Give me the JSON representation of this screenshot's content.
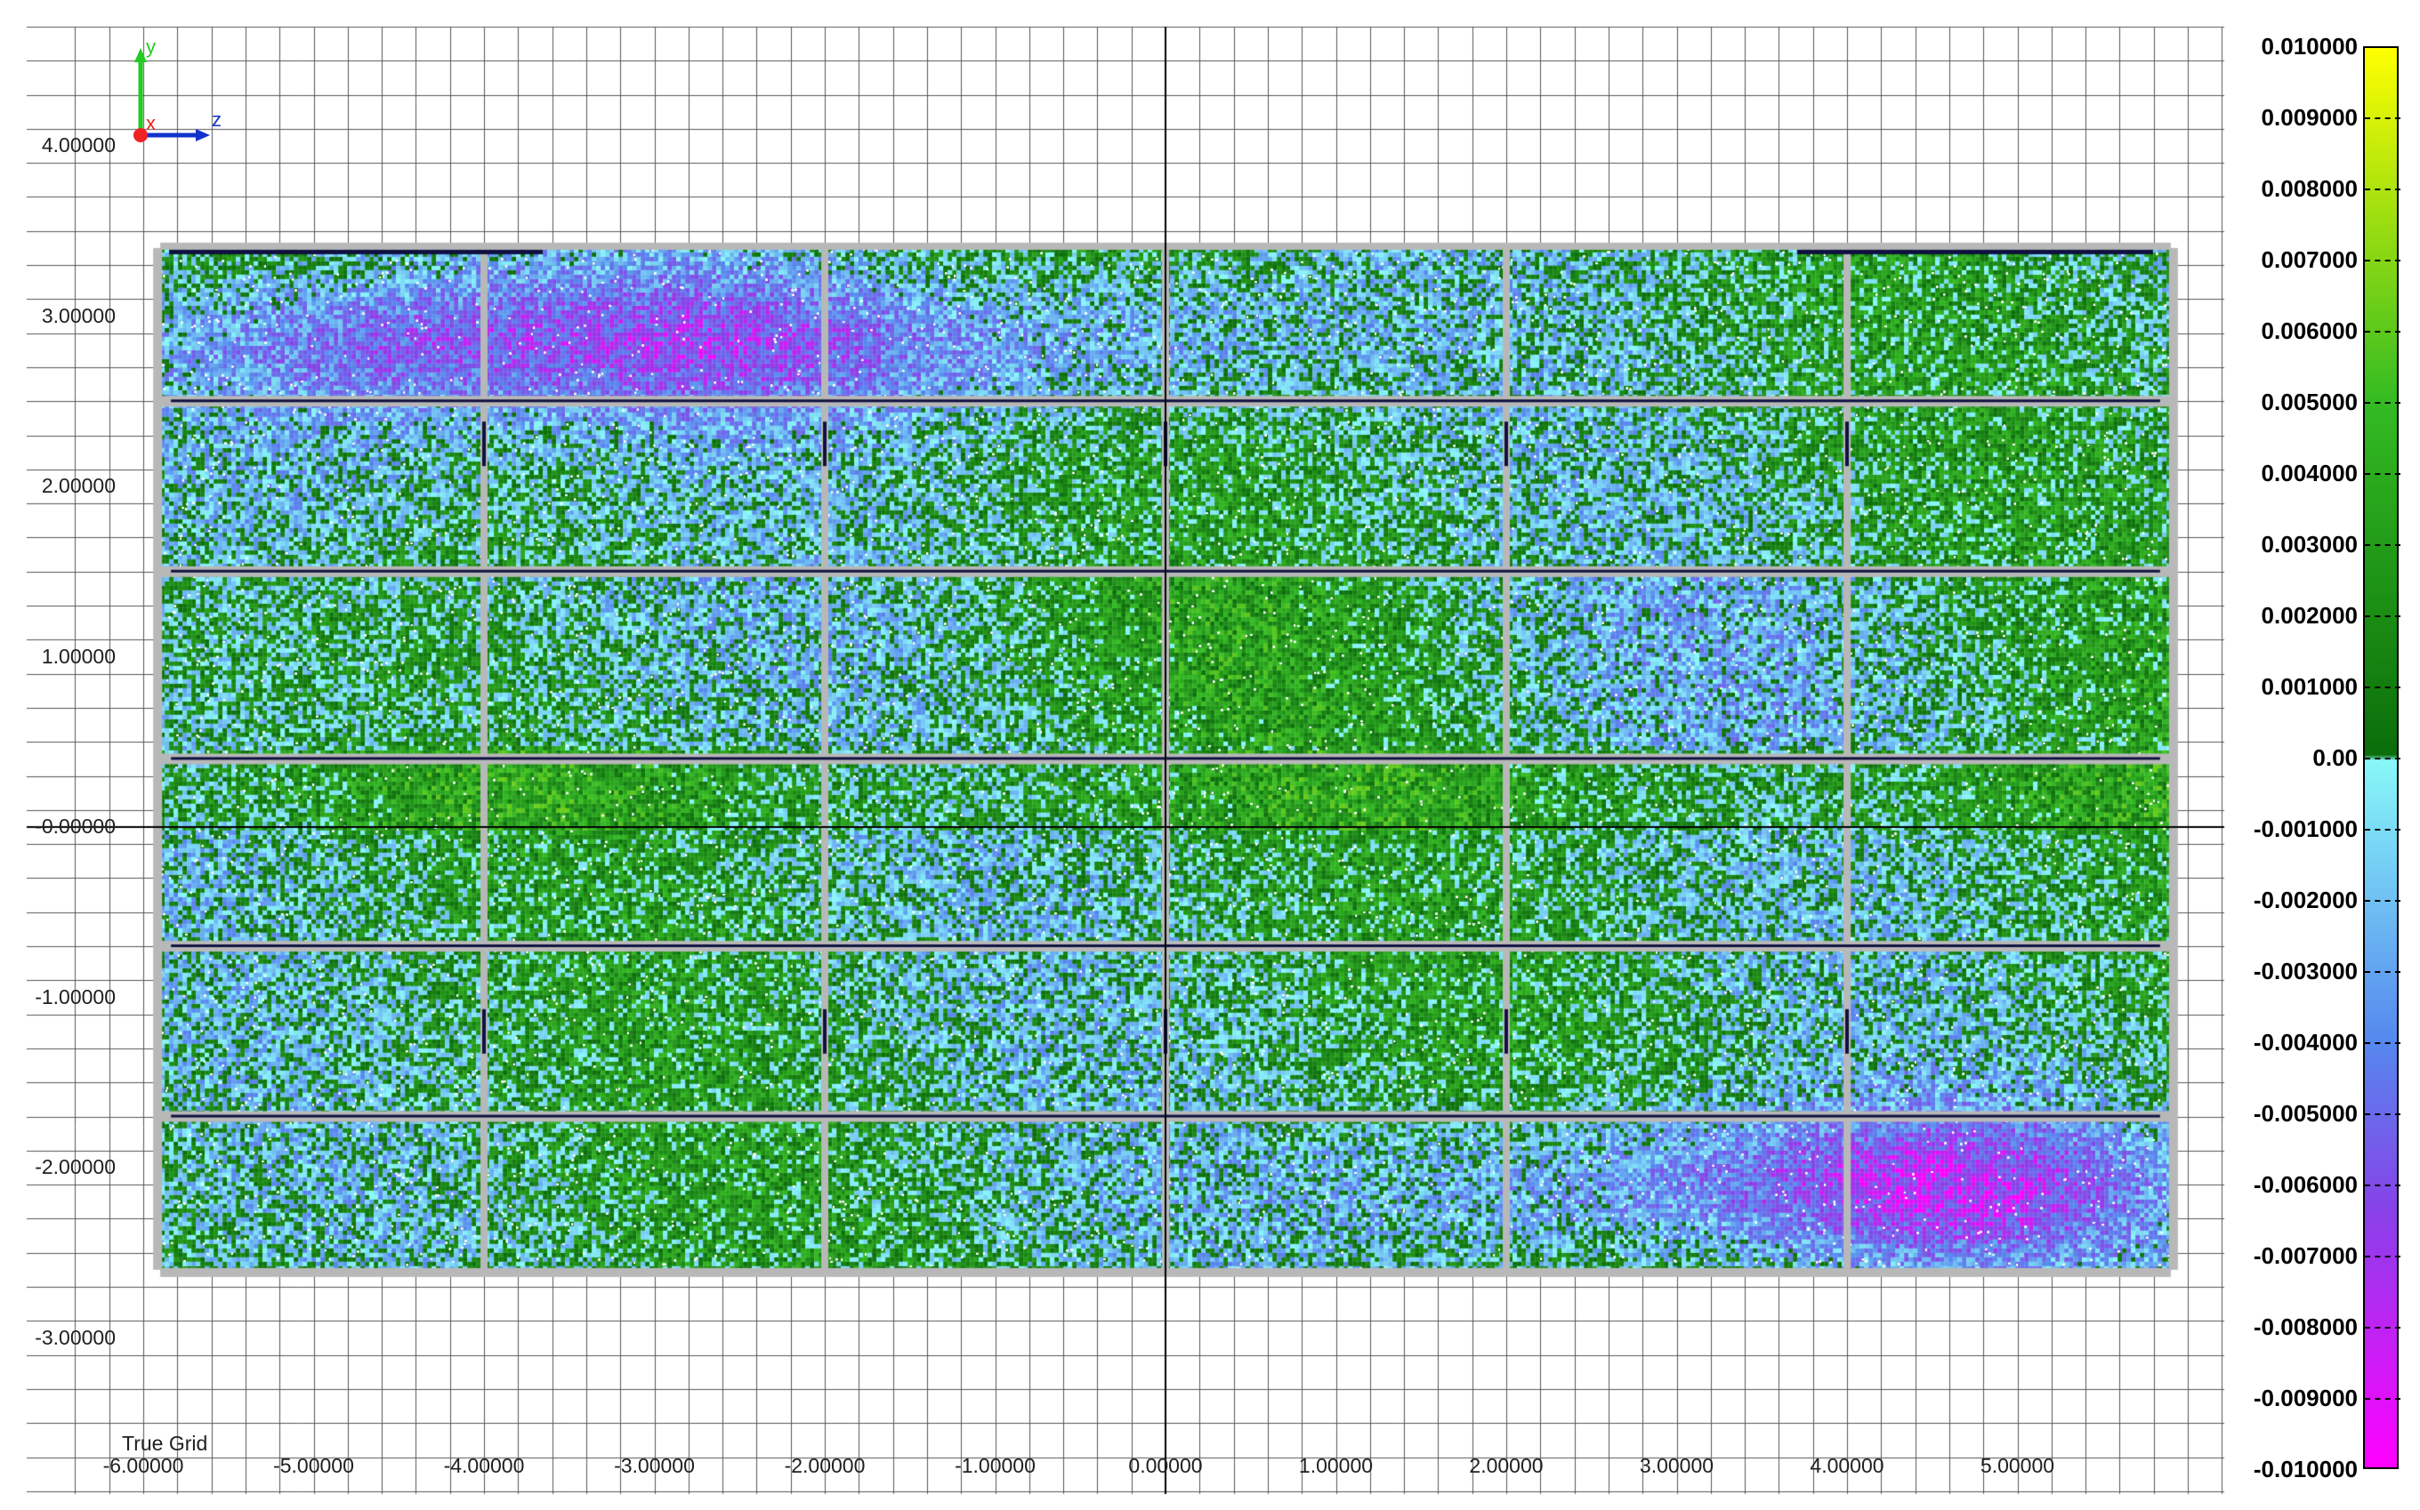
{
  "viewport": {
    "grid_type_label": "True Grid",
    "triad": {
      "y_label": "y",
      "x_label": "x",
      "z_label": "z"
    },
    "axis": {
      "h_labels": [
        "-6.00000",
        "-5.00000",
        "-4.00000",
        "-3.00000",
        "-2.00000",
        "-1.00000",
        "0.00000",
        "1.00000",
        "2.00000",
        "3.00000",
        "4.00000",
        "5.00000"
      ],
      "h_values": [
        -6,
        -5,
        -4,
        -3,
        -2,
        -1,
        0,
        1,
        2,
        3,
        4,
        5
      ],
      "v_labels": [
        "4.00000",
        "3.00000",
        "2.00000",
        "1.00000",
        "-0.00000",
        "-1.00000",
        "-2.00000",
        "-3.00000"
      ],
      "v_values": [
        4,
        3,
        2,
        1,
        0,
        -1,
        -2,
        -3
      ]
    },
    "panel": {
      "x_range": [
        -5.9,
        5.9
      ],
      "y_range": [
        -2.6,
        3.4
      ],
      "vertical_seams": [
        -4,
        -2,
        0,
        2,
        4
      ],
      "horizontal_seams": [
        2.5,
        1.5,
        0.4,
        -0.7,
        -1.7
      ]
    }
  },
  "legend": {
    "labels": [
      "0.010000",
      "0.009000",
      "0.008000",
      "0.007000",
      "0.006000",
      "0.005000",
      "0.004000",
      "0.003000",
      "0.002000",
      "0.001000",
      "0.00",
      "-0.001000",
      "-0.002000",
      "-0.003000",
      "-0.004000",
      "-0.005000",
      "-0.006000",
      "-0.007000",
      "-0.008000",
      "-0.009000",
      "-0.010000"
    ],
    "colors": {
      "max": "#ffff00",
      "upper_mid": "#33bb22",
      "zero_pos": "#0a6e0a",
      "zero_neg": "#88f8f8",
      "lower_mid": "#5588ee",
      "low": "#8840e8",
      "min": "#ff00ff"
    }
  },
  "colors": {
    "grid": "#555555",
    "axis": "#000000",
    "panel_seam": "#b8b8b8",
    "dark_edge": "#101040"
  }
}
